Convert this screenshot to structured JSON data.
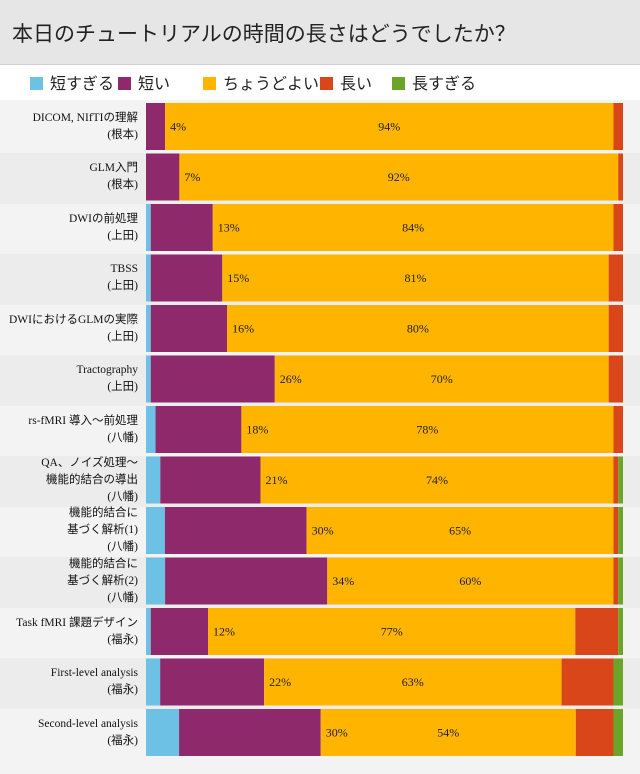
{
  "title": "本日のチュートリアルの時間の長さはどうでしたか？",
  "chart_data": {
    "type": "bar",
    "orientation": "horizontal-stacked-100",
    "title": "本日のチュートリアルの時間の長さはどうでしたか？",
    "legend_position": "top",
    "series": [
      {
        "name": "短すぎる",
        "color": "#6cc1e4",
        "values": [
          0,
          0,
          1,
          1,
          1,
          1,
          2,
          3,
          4,
          4,
          1,
          3,
          7
        ]
      },
      {
        "name": "短い",
        "color": "#8e2a6c",
        "values": [
          4,
          7,
          13,
          15,
          16,
          26,
          18,
          21,
          30,
          34,
          12,
          22,
          30
        ]
      },
      {
        "name": "ちょうどよい",
        "color": "#ffb400",
        "values": [
          94,
          92,
          84,
          81,
          80,
          70,
          78,
          74,
          65,
          60,
          77,
          63,
          54
        ]
      },
      {
        "name": "長い",
        "color": "#d9461a",
        "values": [
          2,
          1,
          2,
          3,
          3,
          3,
          2,
          1,
          1,
          1,
          9,
          11,
          8
        ]
      },
      {
        "name": "長すぎる",
        "color": "#6aa52a",
        "values": [
          0,
          0,
          0,
          0,
          0,
          0,
          0,
          1,
          1,
          1,
          1,
          2,
          2
        ]
      }
    ],
    "categories": [
      [
        "DICOM, NIfTIの理解",
        "(根本)"
      ],
      [
        "GLM入門",
        "(根本)"
      ],
      [
        "DWIの前処理",
        "(上田)"
      ],
      [
        "TBSS",
        "(上田)"
      ],
      [
        "DWIにおけるGLMの実際",
        "(上田)"
      ],
      [
        "Tractography",
        "(上田)"
      ],
      [
        "rs-fMRI 導入～前処理",
        "(八幡)"
      ],
      [
        "QA、ノイズ処理～",
        "機能的結合の導出",
        "(八幡)"
      ],
      [
        "機能的結合に",
        "基づく解析(1)",
        "(八幡)"
      ],
      [
        "機能的結合に",
        "基づく解析(2)",
        "(八幡)"
      ],
      [
        "Task fMRI 課題デザイン",
        "(福永)"
      ],
      [
        "First-level analysis",
        "(福永)"
      ],
      [
        "Second-level analysis",
        "(福永)"
      ]
    ],
    "data_labels": {
      "short": [
        "4%",
        "7%",
        "13%",
        "15%",
        "16%",
        "26%",
        "18%",
        "21%",
        "30%",
        "34%",
        "12%",
        "22%",
        "30%"
      ],
      "just_right": [
        "94%",
        "92%",
        "84%",
        "81%",
        "80%",
        "70%",
        "78%",
        "74%",
        "65%",
        "60%",
        "77%",
        "63%",
        "54%"
      ]
    },
    "xlim": [
      0,
      100
    ]
  }
}
